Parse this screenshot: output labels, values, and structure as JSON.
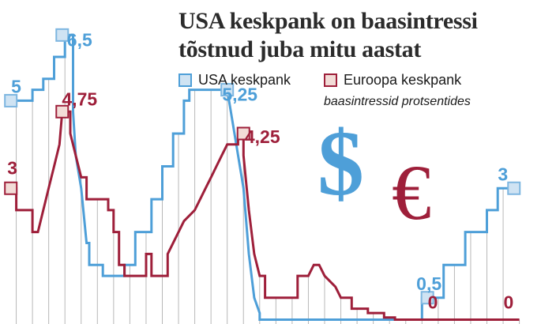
{
  "title_lines": [
    "USA keskpank on baasintressi",
    "tõstnud juba mitu aastat"
  ],
  "subtitle": "baasintressid protsentides",
  "colors": {
    "usa": "#4e9fd8",
    "ecb": "#9e1f3a",
    "marker_fill": "#f2dcd7",
    "grid": "#b8b8b8",
    "title": "#2b2b2b"
  },
  "icons": {
    "dollar": "$",
    "euro": "€"
  },
  "chart_data": {
    "type": "line",
    "title": "USA keskpank on baasintressi tõstnud juba mitu aastat",
    "subtitle": "baasintressid protsentides",
    "xlim": [
      0,
      100
    ],
    "ylim": [
      -0.1,
      7.3
    ],
    "grid": "vertical",
    "legend_position": "top-center",
    "series": [
      {
        "name": "USA keskpank",
        "color": "#4e9fd8",
        "points": [
          [
            2,
            5
          ],
          [
            6,
            5
          ],
          [
            6,
            5.25
          ],
          [
            8,
            5.25
          ],
          [
            8,
            5.5
          ],
          [
            10,
            5.5
          ],
          [
            10,
            6
          ],
          [
            12,
            6
          ],
          [
            12,
            6.5
          ],
          [
            13.5,
            6.5
          ],
          [
            13.5,
            4.75
          ],
          [
            14,
            3.75
          ],
          [
            15,
            3
          ],
          [
            16,
            1.75
          ],
          [
            16.5,
            1.75
          ],
          [
            16.5,
            1.25
          ],
          [
            19,
            1.25
          ],
          [
            19,
            1
          ],
          [
            23,
            1
          ],
          [
            23,
            1.25
          ],
          [
            25,
            1.25
          ],
          [
            25,
            2
          ],
          [
            28,
            2
          ],
          [
            28,
            2.75
          ],
          [
            30,
            2.75
          ],
          [
            30,
            3.5
          ],
          [
            32,
            3.5
          ],
          [
            32,
            4.25
          ],
          [
            34,
            4.25
          ],
          [
            34,
            5
          ],
          [
            35,
            5
          ],
          [
            35,
            5.25
          ],
          [
            42,
            5.25
          ],
          [
            43,
            4.5
          ],
          [
            45,
            3
          ],
          [
            46,
            1.5
          ],
          [
            47,
            0.5
          ],
          [
            48,
            0.15
          ],
          [
            48,
            0
          ],
          [
            78,
            0
          ],
          [
            78,
            0.5
          ],
          [
            82,
            0.5
          ],
          [
            82,
            1.25
          ],
          [
            86,
            1.25
          ],
          [
            86,
            2
          ],
          [
            90,
            2
          ],
          [
            90,
            2.5
          ],
          [
            92,
            2.5
          ],
          [
            92,
            3
          ],
          [
            95,
            3
          ]
        ],
        "markers": [
          [
            2,
            5
          ],
          [
            11.5,
            6.5
          ],
          [
            42,
            5.25
          ],
          [
            79,
            0.5
          ],
          [
            95,
            3
          ]
        ],
        "labels": [
          {
            "x": 3,
            "y": 5,
            "text": "5",
            "dx": 0,
            "dy": -16
          },
          {
            "x": 11.5,
            "y": 6.5,
            "text": "6,5",
            "dx": 22,
            "dy": 8
          },
          {
            "x": 42,
            "y": 5.25,
            "text": "5,25",
            "dx": 16,
            "dy": 8
          },
          {
            "x": 79,
            "y": 0.5,
            "text": "0,5",
            "dx": 2,
            "dy": -16
          },
          {
            "x": 95,
            "y": 3,
            "text": "3",
            "dx": -14,
            "dy": -16
          }
        ]
      },
      {
        "name": "Euroopa keskpank",
        "color": "#9e1f3a",
        "points": [
          [
            2,
            3
          ],
          [
            3,
            3
          ],
          [
            3,
            2.5
          ],
          [
            6,
            2.5
          ],
          [
            6,
            2
          ],
          [
            7,
            2
          ],
          [
            8,
            2.5
          ],
          [
            9,
            3
          ],
          [
            10,
            3.5
          ],
          [
            11,
            4
          ],
          [
            11.5,
            4.75
          ],
          [
            13,
            4.75
          ],
          [
            13,
            4.25
          ],
          [
            14,
            3.75
          ],
          [
            15,
            3.25
          ],
          [
            16,
            3.25
          ],
          [
            16,
            2.75
          ],
          [
            20,
            2.75
          ],
          [
            20,
            2.5
          ],
          [
            21,
            2.5
          ],
          [
            21,
            2
          ],
          [
            22,
            2
          ],
          [
            22,
            1.25
          ],
          [
            23,
            1.25
          ],
          [
            23,
            1
          ],
          [
            27,
            1
          ],
          [
            27,
            1.5
          ],
          [
            28,
            1.5
          ],
          [
            28,
            1
          ],
          [
            31,
            1
          ],
          [
            31,
            1.5
          ],
          [
            33,
            2
          ],
          [
            34,
            2.25
          ],
          [
            36,
            2.5
          ],
          [
            38,
            3
          ],
          [
            39,
            3.25
          ],
          [
            40,
            3.5
          ],
          [
            41,
            3.75
          ],
          [
            42,
            4
          ],
          [
            44,
            4
          ],
          [
            44,
            4.25
          ],
          [
            45,
            4.25
          ],
          [
            45,
            3.75
          ],
          [
            46,
            2.5
          ],
          [
            47,
            1.5
          ],
          [
            48,
            1
          ],
          [
            49,
            1
          ],
          [
            49,
            0.5
          ],
          [
            55,
            0.5
          ],
          [
            55,
            1
          ],
          [
            57,
            1
          ],
          [
            58,
            1.25
          ],
          [
            59,
            1.25
          ],
          [
            60,
            1
          ],
          [
            62,
            0.75
          ],
          [
            63,
            0.5
          ],
          [
            65,
            0.5
          ],
          [
            65,
            0.25
          ],
          [
            68,
            0.25
          ],
          [
            68,
            0.15
          ],
          [
            71,
            0.15
          ],
          [
            71,
            0.05
          ],
          [
            73,
            0.05
          ],
          [
            73,
            0
          ],
          [
            96,
            0
          ]
        ],
        "markers": [
          [
            2,
            3
          ],
          [
            11.5,
            4.75
          ],
          [
            45,
            4.25
          ]
        ],
        "labels": [
          {
            "x": 2,
            "y": 3,
            "text": "3",
            "dx": 2,
            "dy": -24
          },
          {
            "x": 11.5,
            "y": 4.75,
            "text": "4,75",
            "dx": 22,
            "dy": -14
          },
          {
            "x": 45,
            "y": 4.25,
            "text": "4,25",
            "dx": 24,
            "dy": 6
          },
          {
            "x": 80,
            "y": 0,
            "text": "0",
            "dx": 0,
            "dy": -20
          },
          {
            "x": 94,
            "y": 0,
            "text": "0",
            "dx": 0,
            "dy": -20
          }
        ]
      }
    ]
  }
}
